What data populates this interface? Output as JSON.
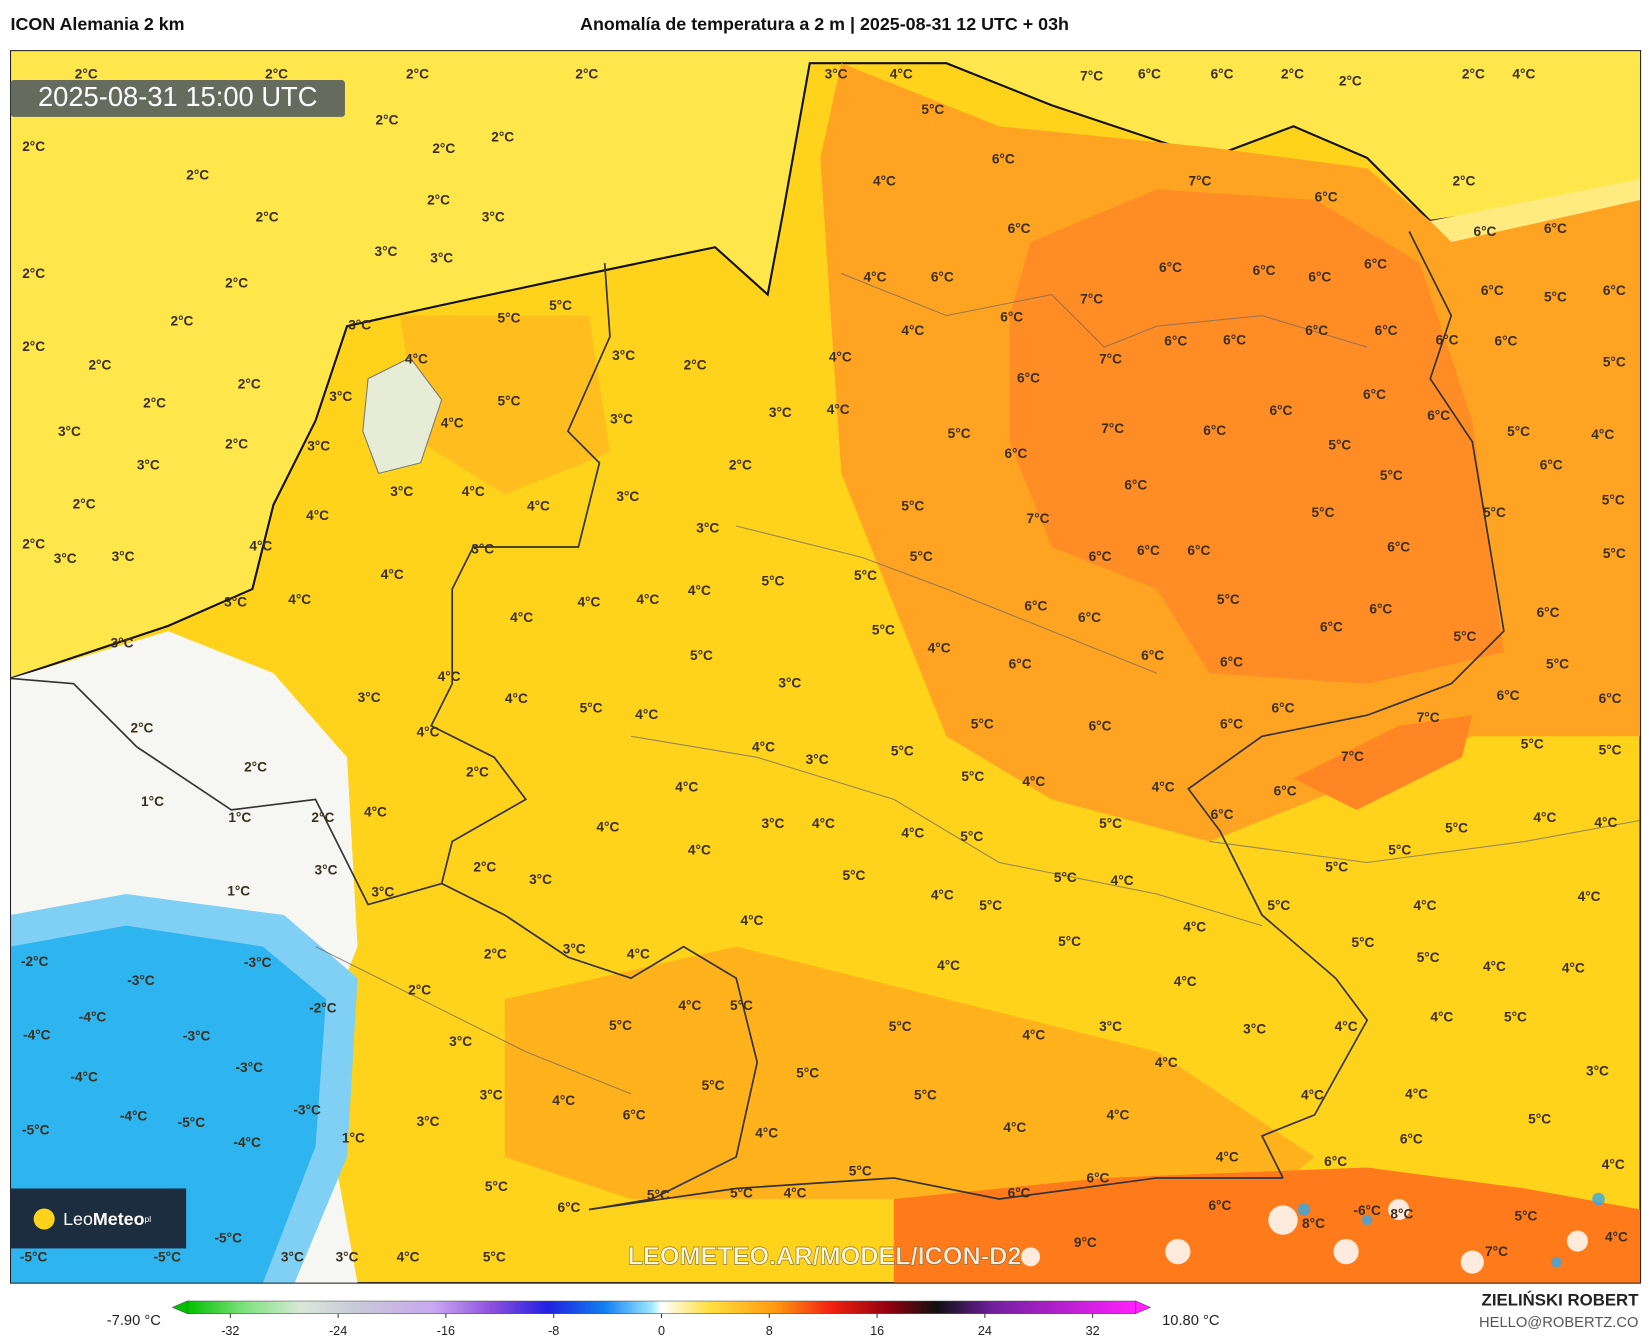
{
  "header": {
    "model": "ICON Alemania 2 km",
    "title": "Anomalía de temperatura a 2 m | 2025-08-31 12 UTC + 03h"
  },
  "timestamp": "2025-08-31 15:00 UTC",
  "logo": {
    "first": "Leo",
    "second": "Meteo",
    "suffix": "pl"
  },
  "watermark": "LEOMETEO.AR/MODEL/ICON-D2",
  "author": {
    "name": "ZIELIŃSKI ROBERT",
    "email": "HELLO@ROBERTZ.CO"
  },
  "colorbar": {
    "min_label": "-7.90 °C",
    "max_label": "10.80 °C",
    "lim": [
      -35.2,
      35.2
    ],
    "ticks": [
      -32,
      -24,
      -16,
      -8,
      0,
      8,
      16,
      24,
      32
    ]
  },
  "map_labels": [
    "2°C",
    "2°C",
    "2°C",
    "2°C",
    "3°C",
    "4°C",
    "7°C",
    "6°C",
    "6°C",
    "2°C",
    "2°C",
    "2°C",
    "4°C",
    "2°C",
    "2°C",
    "2°C",
    "2°C",
    "2°C",
    "2°C",
    "3°C",
    "2°C",
    "3°C",
    "3°C",
    "2°C",
    "2°C",
    "2°C",
    "2°C",
    "2°C",
    "2°C",
    "2°C",
    "3°C",
    "2°C",
    "3°C",
    "2°C",
    "2°C",
    "3°C",
    "3°C",
    "5°C",
    "6°C",
    "4°C",
    "6°C",
    "7°C",
    "6°C",
    "6°C",
    "6°C",
    "2°C",
    "6°C",
    "6°C",
    "6°C",
    "6°C",
    "6°C",
    "5°C",
    "6°C",
    "7°C",
    "6°C",
    "6°C",
    "6°C",
    "6°C",
    "6°C",
    "6°C",
    "6°C",
    "5°C",
    "6°C",
    "7°C",
    "6°C",
    "6°C",
    "6°C",
    "5°C",
    "4°C",
    "7°C",
    "6°C",
    "5°C",
    "6°C",
    "5°C",
    "6°C",
    "5°C",
    "6°C",
    "5°C",
    "7°C",
    "5°C",
    "5°C",
    "6°C",
    "6°C",
    "6°C",
    "6°C",
    "5°C",
    "5°C",
    "5°C",
    "3°C",
    "4°C",
    "3°C",
    "2°C",
    "4°C",
    "4°C",
    "4°C",
    "6°C",
    "5°C",
    "3°C",
    "4°C",
    "3°C",
    "3°C",
    "4°C",
    "3°C",
    "2°C",
    "3°C",
    "4°C",
    "4°C",
    "3°C",
    "3°C",
    "5°C",
    "4°C",
    "4°C",
    "3°C",
    "4°C",
    "5°C",
    "5°C",
    "5°C",
    "4°C",
    "3°C",
    "4°C",
    "4°C",
    "4°C",
    "3°C",
    "4°C",
    "5°C",
    "6°C",
    "6°C",
    "5°C",
    "6°C",
    "6°C",
    "5°C",
    "6°C",
    "5°C",
    "4°C",
    "6°C",
    "6°C",
    "6°C",
    "5°C",
    "4°C",
    "3°C",
    "6°C",
    "6°C",
    "3°C",
    "4°C",
    "5°C",
    "4°C",
    "6°C",
    "6°C",
    "6°C",
    "7°C",
    "2°C",
    "4°C",
    "5°C",
    "4°C",
    "3°C",
    "5°C",
    "7°C",
    "5°C",
    "5°C",
    "2°C",
    "2°C",
    "5°C",
    "4°C",
    "4°C",
    "6°C",
    "4°C",
    "1°C",
    "1°C",
    "2°C",
    "4°C",
    "6°C",
    "4°C",
    "3°C",
    "4°C",
    "4°C",
    "5°C",
    "5°C",
    "5°C",
    "4°C",
    "4°C",
    "4°C",
    "5°C",
    "3°C",
    "2°C",
    "3°C",
    "5°C",
    "5°C",
    "4°C",
    "5°C",
    "1°C",
    "3°C",
    "4°C",
    "5°C",
    "5°C",
    "4°C",
    "4°C",
    "4°C",
    "4°C",
    "5°C",
    "5°C",
    "-2°C",
    "-3°C",
    "3°C",
    "2°C",
    "4°C",
    "4°C",
    "5°C",
    "4°C",
    "4°C",
    "-3°C",
    "4°C",
    "2°C",
    "-2°C",
    "4°C",
    "5°C",
    "-4°C",
    "5°C",
    "5°C",
    "3°C",
    "3°C",
    "4°C",
    "4°C",
    "5°C",
    "-4°C",
    "-3°C",
    "3°C",
    "4°C",
    "4°C",
    "-3°C",
    "5°C",
    "3°C",
    "-4°C",
    "5°C",
    "3°C",
    "4°C",
    "5°C",
    "4°C",
    "4°C",
    "-3°C",
    "6°C",
    "4°C",
    "-4°C",
    "-5°C",
    "3°C",
    "5°C",
    "-5°C",
    "4°C",
    "-4°C",
    "1°C",
    "4°C",
    "6°C",
    "4°C",
    "4°C",
    "5°C",
    "5°C",
    "6°C",
    "6°C",
    "5°C",
    "5°C",
    "4°C",
    "6°C",
    "6°C",
    "6°C",
    "-6°C",
    "8°C",
    "5°C",
    "8°C",
    "-5°C",
    "4°C",
    "9°C",
    "-5°C",
    "-5°C",
    "3°C",
    "3°C",
    "4°C",
    "5°C",
    "7°C"
  ]
}
